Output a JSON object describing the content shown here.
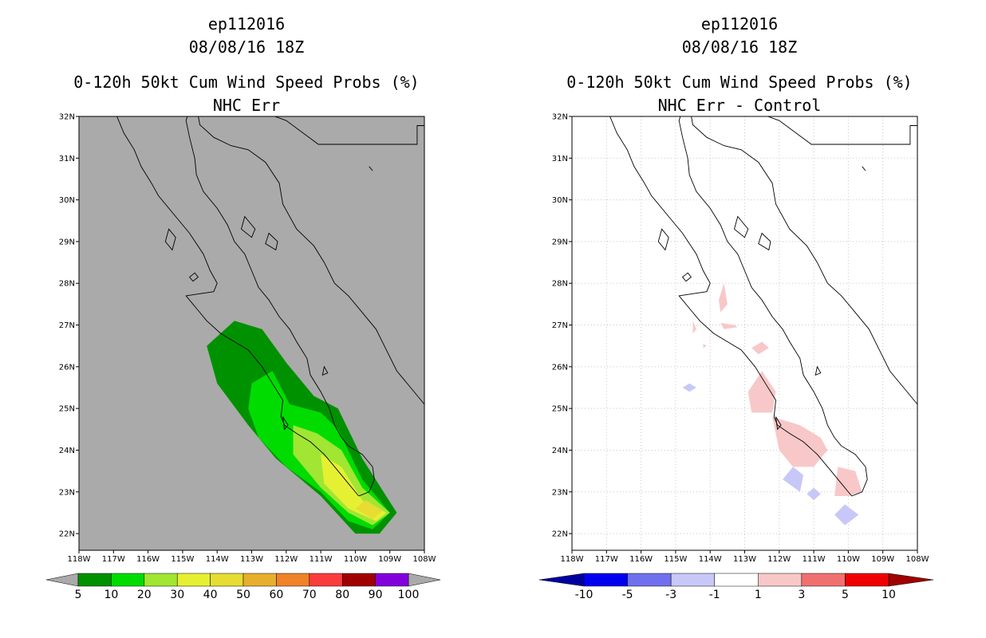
{
  "left_panel": {
    "storm_id": "ep112016",
    "datetime": "08/08/16 18Z",
    "title": "0-120h 50kt Cum Wind Speed Probs (%)",
    "subtitle": "NHC Err"
  },
  "right_panel": {
    "storm_id": "ep112016",
    "datetime": "08/08/16 18Z",
    "title": "0-120h 50kt Cum Wind Speed Probs (%)",
    "subtitle": "NHC Err - Control"
  },
  "colors": {
    "background_left": "#aaaaaa",
    "background_right": "#ffffff",
    "coast": "#000000",
    "grid": "#c8c8c8"
  },
  "chart_data": [
    {
      "type": "heatmap",
      "title": "0-120h 50kt Cum Wind Speed Probs (%)",
      "subtitle": "NHC Err",
      "x_ticks": [
        "118W",
        "117W",
        "116W",
        "115W",
        "114W",
        "113W",
        "112W",
        "111W",
        "110W",
        "109W",
        "108W"
      ],
      "y_ticks": [
        "22N",
        "23N",
        "24N",
        "25N",
        "26N",
        "27N",
        "28N",
        "29N",
        "30N",
        "31N",
        "32N"
      ],
      "xlim": [
        -118,
        -108
      ],
      "ylim": [
        21.6,
        32
      ],
      "colorbar": {
        "labels": [
          "5",
          "10",
          "20",
          "30",
          "40",
          "50",
          "60",
          "70",
          "80",
          "90",
          "100"
        ],
        "colors": [
          "#009100",
          "#00dc00",
          "#a0e632",
          "#e6f032",
          "#e6dc32",
          "#e6af2d",
          "#f08228",
          "#fa3c3c",
          "#a00000",
          "#8200dc"
        ]
      },
      "contours": [
        {
          "level": 5,
          "color": "#009100",
          "points": [
            [
              -114.3,
              26.5
            ],
            [
              -113.5,
              27.1
            ],
            [
              -112.7,
              26.9
            ],
            [
              -112.0,
              26.1
            ],
            [
              -111.2,
              25.3
            ],
            [
              -110.5,
              25.0
            ],
            [
              -109.8,
              23.8
            ],
            [
              -108.8,
              22.5
            ],
            [
              -109.3,
              22.0
            ],
            [
              -110.0,
              22.0
            ],
            [
              -111.0,
              22.9
            ],
            [
              -112.3,
              23.8
            ],
            [
              -113.1,
              24.6
            ],
            [
              -114.0,
              25.6
            ]
          ]
        },
        {
          "level": 10,
          "color": "#00dc00",
          "points": [
            [
              -113.0,
              25.6
            ],
            [
              -112.4,
              25.9
            ],
            [
              -111.9,
              25.1
            ],
            [
              -111.0,
              24.9
            ],
            [
              -110.5,
              24.5
            ],
            [
              -109.8,
              23.3
            ],
            [
              -109.0,
              22.5
            ],
            [
              -109.5,
              22.1
            ],
            [
              -110.2,
              22.3
            ],
            [
              -111.0,
              23.0
            ],
            [
              -112.0,
              23.6
            ],
            [
              -112.8,
              24.3
            ],
            [
              -113.1,
              25.0
            ]
          ]
        },
        {
          "level": 20,
          "color": "#a0e632",
          "points": [
            [
              -111.8,
              24.6
            ],
            [
              -111.1,
              24.4
            ],
            [
              -110.4,
              24.0
            ],
            [
              -109.8,
              23.1
            ],
            [
              -109.0,
              22.5
            ],
            [
              -109.5,
              22.2
            ],
            [
              -110.2,
              22.5
            ],
            [
              -111.0,
              23.1
            ],
            [
              -111.8,
              23.9
            ]
          ]
        },
        {
          "level": 30,
          "color": "#e6f032",
          "points": [
            [
              -111.0,
              23.9
            ],
            [
              -110.4,
              23.6
            ],
            [
              -109.8,
              22.8
            ],
            [
              -109.1,
              22.5
            ],
            [
              -109.4,
              22.3
            ],
            [
              -110.2,
              22.6
            ],
            [
              -110.9,
              23.2
            ]
          ]
        },
        {
          "level": 40,
          "color": "#e6dc32",
          "points": [
            [
              -109.7,
              22.8
            ],
            [
              -109.2,
              22.55
            ],
            [
              -109.5,
              22.35
            ],
            [
              -110.0,
              22.6
            ]
          ]
        }
      ]
    },
    {
      "type": "heatmap",
      "title": "0-120h 50kt Cum Wind Speed Probs (%)",
      "subtitle": "NHC Err - Control",
      "x_ticks": [
        "118W",
        "117W",
        "116W",
        "115W",
        "114W",
        "113W",
        "112W",
        "111W",
        "110W",
        "109W",
        "108W"
      ],
      "y_ticks": [
        "22N",
        "23N",
        "24N",
        "25N",
        "26N",
        "27N",
        "28N",
        "29N",
        "30N",
        "31N",
        "32N"
      ],
      "xlim": [
        -118,
        -108
      ],
      "ylim": [
        21.6,
        32
      ],
      "grid": true,
      "colorbar": {
        "labels": [
          "-10",
          "-5",
          "-3",
          "-1",
          "1",
          "3",
          "5",
          "10"
        ],
        "colors": [
          "#0000a0",
          "#0000f0",
          "#7070ee",
          "#c8c8f8",
          "#ffffff",
          "#f8c8c8",
          "#f07070",
          "#f00000",
          "#a00000"
        ]
      },
      "contours": [
        {
          "level": 1,
          "color": "#f8c8c8",
          "points": [
            [
              -113.6,
              28.0
            ],
            [
              -113.5,
              27.5
            ],
            [
              -113.7,
              27.3
            ],
            [
              -113.75,
              27.6
            ]
          ]
        },
        {
          "level": 1,
          "color": "#f8c8c8",
          "points": [
            [
              -113.7,
              27.05
            ],
            [
              -113.3,
              27.0
            ],
            [
              -113.2,
              26.95
            ],
            [
              -113.6,
              26.9
            ]
          ]
        },
        {
          "level": 1,
          "color": "#f8c8c8",
          "points": [
            [
              -114.5,
              27.1
            ],
            [
              -114.4,
              26.9
            ],
            [
              -114.5,
              26.8
            ]
          ]
        },
        {
          "level": 1,
          "color": "#f8c8c8",
          "points": [
            [
              -112.5,
              26.6
            ],
            [
              -112.3,
              26.45
            ],
            [
              -112.6,
              26.3
            ],
            [
              -112.8,
              26.45
            ]
          ]
        },
        {
          "level": 1,
          "color": "#f8c8c8",
          "points": [
            [
              -112.5,
              25.9
            ],
            [
              -112.1,
              25.4
            ],
            [
              -112.2,
              24.9
            ],
            [
              -112.8,
              24.9
            ],
            [
              -112.9,
              25.4
            ]
          ]
        },
        {
          "level": 1,
          "color": "#f8c8c8",
          "points": [
            [
              -112.2,
              24.8
            ],
            [
              -111.4,
              24.6
            ],
            [
              -110.8,
              24.3
            ],
            [
              -110.6,
              24.0
            ],
            [
              -111.0,
              23.6
            ],
            [
              -111.6,
              23.6
            ],
            [
              -112.0,
              24.0
            ]
          ]
        },
        {
          "level": 1,
          "color": "#f8c8c8",
          "points": [
            [
              -110.3,
              23.6
            ],
            [
              -109.8,
              23.5
            ],
            [
              -109.6,
              23.0
            ],
            [
              -110.0,
              22.9
            ],
            [
              -110.4,
              22.9
            ]
          ]
        },
        {
          "level": 1,
          "color": "#f8c8c8",
          "points": [
            [
              -114.2,
              26.55
            ],
            [
              -114.1,
              26.5
            ],
            [
              -114.2,
              26.45
            ]
          ]
        },
        {
          "level": -1,
          "color": "#c8c8f8",
          "points": [
            [
              -114.6,
              25.6
            ],
            [
              -114.4,
              25.5
            ],
            [
              -114.6,
              25.4
            ],
            [
              -114.8,
              25.5
            ]
          ]
        },
        {
          "level": -1,
          "color": "#c8c8f8",
          "points": [
            [
              -111.6,
              23.6
            ],
            [
              -111.3,
              23.4
            ],
            [
              -111.4,
              23.0
            ],
            [
              -111.9,
              23.3
            ]
          ]
        },
        {
          "level": -1,
          "color": "#c8c8f8",
          "points": [
            [
              -111.0,
              23.1
            ],
            [
              -110.8,
              22.95
            ],
            [
              -111.0,
              22.8
            ],
            [
              -111.2,
              22.95
            ]
          ]
        },
        {
          "level": -1,
          "color": "#c8c8f8",
          "points": [
            [
              -110.1,
              22.7
            ],
            [
              -109.7,
              22.45
            ],
            [
              -110.1,
              22.2
            ],
            [
              -110.4,
              22.45
            ]
          ]
        }
      ]
    }
  ]
}
